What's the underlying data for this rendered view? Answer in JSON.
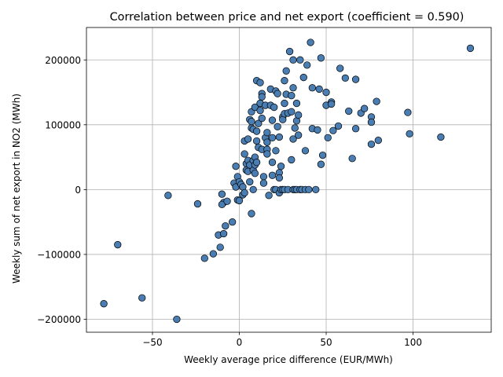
{
  "chart_data": {
    "type": "scatter",
    "title": "Correlation between price and net export (coefficient = 0.590)",
    "xlabel": "Weekly average price difference (EUR/MWh)",
    "ylabel": "Weekly sum of net export in NO2 (MWh)",
    "xlim": [
      -88,
      145
    ],
    "ylim": [
      -220000,
      250000
    ],
    "xticks": [
      -50,
      0,
      50,
      100
    ],
    "yticks": [
      -200000,
      -100000,
      0,
      100000,
      200000
    ],
    "xtick_labels": [
      "−50",
      "0",
      "50",
      "100"
    ],
    "ytick_labels": [
      "−200000",
      "−100000",
      "0",
      "100000",
      "200000"
    ],
    "grid": true,
    "marker_color": "#4a7eb3",
    "points": [
      [
        -78,
        -176000
      ],
      [
        -70,
        -85000
      ],
      [
        -56,
        -167000
      ],
      [
        -41,
        -9000
      ],
      [
        -36,
        -200000
      ],
      [
        -24,
        -22000
      ],
      [
        -20,
        -106000
      ],
      [
        -15,
        -99000
      ],
      [
        -12,
        -70000
      ],
      [
        -11,
        -89000
      ],
      [
        -9,
        -68000
      ],
      [
        -8,
        -56000
      ],
      [
        -4,
        -50000
      ],
      [
        -10,
        -7000
      ],
      [
        -9,
        -20000
      ],
      [
        -10,
        -23000
      ],
      [
        -7,
        -18000
      ],
      [
        -3,
        10000
      ],
      [
        -2,
        4000
      ],
      [
        -2,
        36000
      ],
      [
        -1,
        -16000
      ],
      [
        -1,
        20000
      ],
      [
        0,
        -17000
      ],
      [
        0,
        12000
      ],
      [
        1,
        8000
      ],
      [
        2,
        4000
      ],
      [
        2,
        -8000
      ],
      [
        3,
        -5000
      ],
      [
        3,
        75000
      ],
      [
        3,
        55000
      ],
      [
        4,
        40000
      ],
      [
        4,
        30000
      ],
      [
        5,
        45000
      ],
      [
        5,
        28000
      ],
      [
        5,
        78000
      ],
      [
        6,
        108000
      ],
      [
        6,
        38000
      ],
      [
        6,
        12000
      ],
      [
        7,
        -37000
      ],
      [
        7,
        95000
      ],
      [
        7,
        120000
      ],
      [
        7,
        105000
      ],
      [
        8,
        93000
      ],
      [
        8,
        45000
      ],
      [
        8,
        30000
      ],
      [
        8,
        0
      ],
      [
        9,
        50000
      ],
      [
        9,
        38000
      ],
      [
        9,
        25000
      ],
      [
        9,
        127000
      ],
      [
        10,
        168000
      ],
      [
        10,
        75000
      ],
      [
        10,
        90000
      ],
      [
        10,
        42000
      ],
      [
        11,
        102000
      ],
      [
        11,
        65000
      ],
      [
        12,
        133000
      ],
      [
        12,
        165000
      ],
      [
        12,
        122000
      ],
      [
        13,
        148000
      ],
      [
        13,
        143000
      ],
      [
        13,
        110000
      ],
      [
        13,
        62000
      ],
      [
        14,
        20000
      ],
      [
        14,
        10000
      ],
      [
        15,
        130000
      ],
      [
        15,
        80000
      ],
      [
        16,
        88000
      ],
      [
        16,
        73000
      ],
      [
        16,
        62000
      ],
      [
        16,
        55000
      ],
      [
        17,
        -9000
      ],
      [
        18,
        155000
      ],
      [
        18,
        130000
      ],
      [
        19,
        107000
      ],
      [
        19,
        80000
      ],
      [
        19,
        42000
      ],
      [
        19,
        22000
      ],
      [
        20,
        127000
      ],
      [
        20,
        0
      ],
      [
        21,
        152000
      ],
      [
        21,
        60000
      ],
      [
        21,
        0
      ],
      [
        22,
        148000
      ],
      [
        22,
        97000
      ],
      [
        23,
        81000
      ],
      [
        23,
        26000
      ],
      [
        23,
        18000
      ],
      [
        23,
        -5000
      ],
      [
        24,
        36000
      ],
      [
        24,
        0
      ],
      [
        25,
        112000
      ],
      [
        25,
        108000
      ],
      [
        25,
        0
      ],
      [
        26,
        168000
      ],
      [
        26,
        133000
      ],
      [
        26,
        117000
      ],
      [
        26,
        0
      ],
      [
        27,
        183000
      ],
      [
        27,
        147000
      ],
      [
        28,
        118000
      ],
      [
        28,
        0
      ],
      [
        29,
        213000
      ],
      [
        30,
        145000
      ],
      [
        30,
        120000
      ],
      [
        30,
        46000
      ],
      [
        31,
        200000
      ],
      [
        31,
        157000
      ],
      [
        31,
        78000
      ],
      [
        31,
        0
      ],
      [
        32,
        95000
      ],
      [
        32,
        0
      ],
      [
        33,
        133000
      ],
      [
        33,
        106000
      ],
      [
        33,
        0
      ],
      [
        34,
        115000
      ],
      [
        34,
        84000
      ],
      [
        35,
        200000
      ],
      [
        35,
        0
      ],
      [
        36,
        0
      ],
      [
        37,
        173000
      ],
      [
        38,
        60000
      ],
      [
        38,
        0
      ],
      [
        39,
        192000
      ],
      [
        40,
        0
      ],
      [
        41,
        227000
      ],
      [
        42,
        157000
      ],
      [
        42,
        94000
      ],
      [
        44,
        0
      ],
      [
        45,
        92000
      ],
      [
        46,
        155000
      ],
      [
        47,
        203000
      ],
      [
        47,
        39000
      ],
      [
        48,
        53000
      ],
      [
        50,
        150000
      ],
      [
        50,
        130000
      ],
      [
        51,
        80000
      ],
      [
        53,
        135000
      ],
      [
        53,
        132000
      ],
      [
        54,
        91000
      ],
      [
        57,
        98000
      ],
      [
        58,
        187000
      ],
      [
        61,
        172000
      ],
      [
        63,
        121000
      ],
      [
        65,
        48000
      ],
      [
        67,
        170000
      ],
      [
        67,
        94000
      ],
      [
        70,
        118000
      ],
      [
        72,
        125000
      ],
      [
        76,
        112000
      ],
      [
        76,
        104000
      ],
      [
        76,
        70000
      ],
      [
        79,
        136000
      ],
      [
        80,
        76000
      ],
      [
        97,
        119000
      ],
      [
        98,
        86000
      ],
      [
        116,
        81000
      ],
      [
        133,
        218000
      ]
    ]
  }
}
